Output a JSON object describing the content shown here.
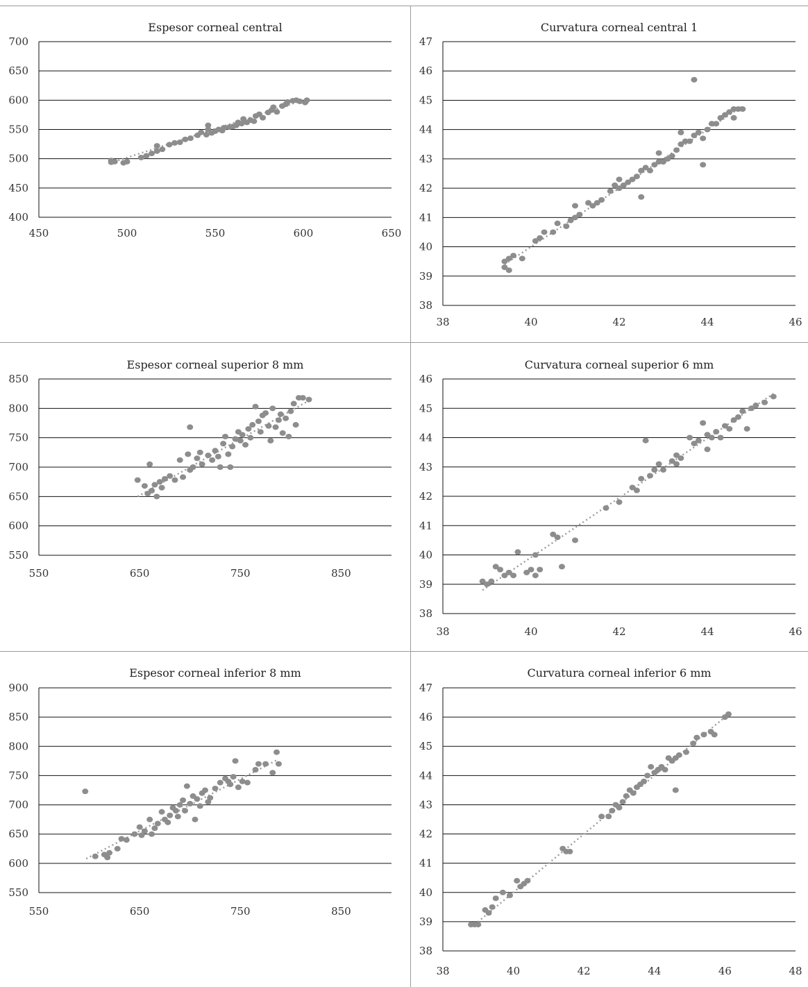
{
  "chart_data": [
    {
      "type": "scatter",
      "title": "Espesor corneal central",
      "xlim": [
        450,
        650
      ],
      "ylim": [
        400,
        700
      ],
      "xticks": [
        450,
        500,
        550,
        600,
        650
      ],
      "yticks": [
        400,
        450,
        500,
        550,
        600,
        650,
        700
      ],
      "trendline": [
        [
          495,
          497
        ],
        [
          600,
          600
        ]
      ],
      "points": [
        [
          491,
          497
        ],
        [
          491,
          494
        ],
        [
          493,
          495
        ],
        [
          498,
          493
        ],
        [
          500,
          495
        ],
        [
          508,
          502
        ],
        [
          511,
          505
        ],
        [
          514,
          509
        ],
        [
          517,
          513
        ],
        [
          517,
          522
        ],
        [
          520,
          516
        ],
        [
          524,
          524
        ],
        [
          527,
          527
        ],
        [
          530,
          528
        ],
        [
          533,
          533
        ],
        [
          536,
          535
        ],
        [
          540,
          540
        ],
        [
          542,
          545
        ],
        [
          545,
          541
        ],
        [
          546,
          550
        ],
        [
          546,
          557
        ],
        [
          548,
          544
        ],
        [
          550,
          547
        ],
        [
          552,
          550
        ],
        [
          554,
          548
        ],
        [
          555,
          553
        ],
        [
          558,
          554
        ],
        [
          560,
          555
        ],
        [
          562,
          557
        ],
        [
          563,
          562
        ],
        [
          565,
          560
        ],
        [
          566,
          568
        ],
        [
          568,
          562
        ],
        [
          570,
          566
        ],
        [
          572,
          564
        ],
        [
          573,
          573
        ],
        [
          575,
          576
        ],
        [
          577,
          570
        ],
        [
          580,
          579
        ],
        [
          582,
          583
        ],
        [
          583,
          588
        ],
        [
          585,
          580
        ],
        [
          588,
          590
        ],
        [
          590,
          593
        ],
        [
          591,
          597
        ],
        [
          594,
          599
        ],
        [
          596,
          600
        ],
        [
          598,
          598
        ],
        [
          601,
          596
        ],
        [
          602,
          600
        ]
      ]
    },
    {
      "type": "scatter",
      "title": "Curvatura corneal central 1",
      "xlim": [
        38,
        46
      ],
      "ylim": [
        38,
        47
      ],
      "xticks": [
        38,
        40,
        42,
        44,
        46
      ],
      "yticks": [
        38,
        39,
        40,
        41,
        42,
        43,
        44,
        45,
        46,
        47
      ],
      "trendline": [
        [
          39.4,
          39.4
        ],
        [
          44.8,
          44.8
        ]
      ],
      "points": [
        [
          39.4,
          39.5
        ],
        [
          39.4,
          39.3
        ],
        [
          39.5,
          39.2
        ],
        [
          39.5,
          39.6
        ],
        [
          39.6,
          39.7
        ],
        [
          39.8,
          39.6
        ],
        [
          40.1,
          40.2
        ],
        [
          40.2,
          40.3
        ],
        [
          40.3,
          40.5
        ],
        [
          40.5,
          40.5
        ],
        [
          40.6,
          40.8
        ],
        [
          40.8,
          40.7
        ],
        [
          40.9,
          40.9
        ],
        [
          41.0,
          41.0
        ],
        [
          41.0,
          41.4
        ],
        [
          41.1,
          41.1
        ],
        [
          41.3,
          41.5
        ],
        [
          41.4,
          41.4
        ],
        [
          41.5,
          41.5
        ],
        [
          41.6,
          41.6
        ],
        [
          41.8,
          41.9
        ],
        [
          41.9,
          42.1
        ],
        [
          42.0,
          42.0
        ],
        [
          42.0,
          42.3
        ],
        [
          42.1,
          42.1
        ],
        [
          42.2,
          42.2
        ],
        [
          42.3,
          42.3
        ],
        [
          42.4,
          42.4
        ],
        [
          42.5,
          42.6
        ],
        [
          42.5,
          41.7
        ],
        [
          42.6,
          42.7
        ],
        [
          42.7,
          42.6
        ],
        [
          42.8,
          42.8
        ],
        [
          42.9,
          42.9
        ],
        [
          42.9,
          43.2
        ],
        [
          43.0,
          42.9
        ],
        [
          43.1,
          43.0
        ],
        [
          43.2,
          43.1
        ],
        [
          43.3,
          43.3
        ],
        [
          43.4,
          43.5
        ],
        [
          43.4,
          43.9
        ],
        [
          43.5,
          43.6
        ],
        [
          43.6,
          43.6
        ],
        [
          43.7,
          43.8
        ],
        [
          43.7,
          45.7
        ],
        [
          43.8,
          43.9
        ],
        [
          43.9,
          43.7
        ],
        [
          43.9,
          42.8
        ],
        [
          44.0,
          44.0
        ],
        [
          44.1,
          44.2
        ],
        [
          44.2,
          44.2
        ],
        [
          44.3,
          44.4
        ],
        [
          44.4,
          44.5
        ],
        [
          44.5,
          44.6
        ],
        [
          44.6,
          44.7
        ],
        [
          44.7,
          44.7
        ],
        [
          44.8,
          44.7
        ],
        [
          44.6,
          44.4
        ]
      ]
    },
    {
      "type": "scatter",
      "title": "Espesor corneal superior 8 mm",
      "xlim": [
        550,
        900
      ],
      "ylim": [
        550,
        850
      ],
      "xticks": [
        550,
        650,
        750,
        850
      ],
      "yticks": [
        550,
        600,
        650,
        700,
        750,
        800,
        850
      ],
      "trendline": [
        [
          648,
          650
        ],
        [
          820,
          815
        ]
      ],
      "points": [
        [
          648,
          678
        ],
        [
          655,
          668
        ],
        [
          658,
          655
        ],
        [
          660,
          705
        ],
        [
          662,
          660
        ],
        [
          665,
          670
        ],
        [
          667,
          650
        ],
        [
          670,
          675
        ],
        [
          672,
          665
        ],
        [
          675,
          680
        ],
        [
          680,
          685
        ],
        [
          685,
          678
        ],
        [
          690,
          712
        ],
        [
          693,
          683
        ],
        [
          698,
          722
        ],
        [
          700,
          695
        ],
        [
          700,
          768
        ],
        [
          703,
          700
        ],
        [
          707,
          715
        ],
        [
          710,
          725
        ],
        [
          712,
          705
        ],
        [
          718,
          720
        ],
        [
          722,
          712
        ],
        [
          725,
          728
        ],
        [
          728,
          718
        ],
        [
          730,
          700
        ],
        [
          733,
          740
        ],
        [
          735,
          752
        ],
        [
          738,
          722
        ],
        [
          740,
          700
        ],
        [
          742,
          735
        ],
        [
          745,
          748
        ],
        [
          748,
          760
        ],
        [
          750,
          745
        ],
        [
          752,
          755
        ],
        [
          755,
          738
        ],
        [
          758,
          765
        ],
        [
          760,
          750
        ],
        [
          762,
          772
        ],
        [
          765,
          803
        ],
        [
          768,
          778
        ],
        [
          770,
          760
        ],
        [
          772,
          788
        ],
        [
          775,
          792
        ],
        [
          778,
          770
        ],
        [
          780,
          745
        ],
        [
          782,
          800
        ],
        [
          785,
          768
        ],
        [
          788,
          780
        ],
        [
          790,
          790
        ],
        [
          792,
          758
        ],
        [
          795,
          783
        ],
        [
          798,
          752
        ],
        [
          800,
          795
        ],
        [
          803,
          808
        ],
        [
          805,
          772
        ],
        [
          808,
          818
        ],
        [
          812,
          818
        ],
        [
          818,
          815
        ]
      ]
    },
    {
      "type": "scatter",
      "title": "Curvatura corneal superior 6 mm",
      "xlim": [
        38,
        46
      ],
      "ylim": [
        38,
        46
      ],
      "xticks": [
        38,
        40,
        42,
        44,
        46
      ],
      "yticks": [
        38,
        39,
        40,
        41,
        42,
        43,
        44,
        45,
        46
      ],
      "trendline": [
        [
          38.9,
          38.8
        ],
        [
          45.5,
          45.5
        ]
      ],
      "points": [
        [
          38.9,
          39.1
        ],
        [
          39.0,
          39.0
        ],
        [
          39.1,
          39.1
        ],
        [
          39.2,
          39.6
        ],
        [
          39.3,
          39.5
        ],
        [
          39.4,
          39.3
        ],
        [
          39.5,
          39.4
        ],
        [
          39.6,
          39.3
        ],
        [
          39.7,
          40.1
        ],
        [
          39.9,
          39.4
        ],
        [
          40.0,
          39.5
        ],
        [
          40.1,
          40.0
        ],
        [
          40.1,
          39.3
        ],
        [
          40.2,
          39.5
        ],
        [
          40.5,
          40.7
        ],
        [
          40.6,
          40.6
        ],
        [
          40.7,
          39.6
        ],
        [
          41.0,
          40.5
        ],
        [
          41.7,
          41.6
        ],
        [
          42.0,
          41.8
        ],
        [
          42.3,
          42.3
        ],
        [
          42.4,
          42.2
        ],
        [
          42.5,
          42.6
        ],
        [
          42.6,
          43.9
        ],
        [
          42.7,
          42.7
        ],
        [
          42.8,
          42.9
        ],
        [
          42.9,
          43.1
        ],
        [
          43.0,
          42.9
        ],
        [
          43.2,
          43.2
        ],
        [
          43.3,
          43.1
        ],
        [
          43.3,
          43.4
        ],
        [
          43.4,
          43.3
        ],
        [
          43.6,
          44.0
        ],
        [
          43.7,
          43.8
        ],
        [
          43.8,
          43.9
        ],
        [
          43.9,
          44.5
        ],
        [
          44.0,
          44.1
        ],
        [
          44.0,
          43.6
        ],
        [
          44.1,
          44.0
        ],
        [
          44.2,
          44.2
        ],
        [
          44.3,
          44.0
        ],
        [
          44.4,
          44.4
        ],
        [
          44.5,
          44.3
        ],
        [
          44.6,
          44.6
        ],
        [
          44.7,
          44.7
        ],
        [
          44.8,
          44.9
        ],
        [
          44.9,
          44.3
        ],
        [
          45.0,
          45.0
        ],
        [
          45.1,
          45.1
        ],
        [
          45.3,
          45.2
        ],
        [
          45.5,
          45.4
        ]
      ]
    },
    {
      "type": "scatter",
      "title": "Espesor corneal inferior 8 mm",
      "xlim": [
        550,
        900
      ],
      "ylim": [
        550,
        900
      ],
      "xticks": [
        550,
        650,
        750,
        850
      ],
      "yticks": [
        550,
        600,
        650,
        700,
        750,
        800,
        850,
        900
      ],
      "trendline": [
        [
          597,
          608
        ],
        [
          788,
          778
        ]
      ],
      "points": [
        [
          596,
          723
        ],
        [
          606,
          612
        ],
        [
          615,
          615
        ],
        [
          618,
          610
        ],
        [
          620,
          618
        ],
        [
          628,
          625
        ],
        [
          632,
          642
        ],
        [
          637,
          640
        ],
        [
          645,
          650
        ],
        [
          650,
          662
        ],
        [
          652,
          648
        ],
        [
          655,
          655
        ],
        [
          660,
          675
        ],
        [
          662,
          650
        ],
        [
          665,
          660
        ],
        [
          668,
          668
        ],
        [
          672,
          688
        ],
        [
          675,
          675
        ],
        [
          678,
          670
        ],
        [
          680,
          682
        ],
        [
          683,
          695
        ],
        [
          686,
          690
        ],
        [
          688,
          680
        ],
        [
          690,
          700
        ],
        [
          693,
          708
        ],
        [
          695,
          690
        ],
        [
          697,
          732
        ],
        [
          700,
          702
        ],
        [
          703,
          715
        ],
        [
          705,
          675
        ],
        [
          707,
          710
        ],
        [
          710,
          698
        ],
        [
          712,
          720
        ],
        [
          715,
          725
        ],
        [
          718,
          705
        ],
        [
          720,
          712
        ],
        [
          725,
          728
        ],
        [
          730,
          738
        ],
        [
          735,
          745
        ],
        [
          738,
          740
        ],
        [
          740,
          735
        ],
        [
          743,
          748
        ],
        [
          745,
          775
        ],
        [
          748,
          730
        ],
        [
          752,
          740
        ],
        [
          757,
          738
        ],
        [
          765,
          760
        ],
        [
          768,
          770
        ],
        [
          775,
          770
        ],
        [
          782,
          755
        ],
        [
          786,
          790
        ],
        [
          788,
          770
        ]
      ]
    },
    {
      "type": "scatter",
      "title": "Curvatura corneal inferior 6 mm",
      "xlim": [
        38,
        48
      ],
      "ylim": [
        38,
        47
      ],
      "xticks": [
        38,
        40,
        42,
        44,
        46,
        48
      ],
      "yticks": [
        38,
        39,
        40,
        41,
        42,
        43,
        44,
        45,
        46,
        47
      ],
      "trendline": [
        [
          38.9,
          38.9
        ],
        [
          46.1,
          46.1
        ]
      ],
      "points": [
        [
          38.8,
          38.9
        ],
        [
          38.9,
          38.9
        ],
        [
          39.0,
          38.9
        ],
        [
          39.2,
          39.4
        ],
        [
          39.3,
          39.3
        ],
        [
          39.4,
          39.5
        ],
        [
          39.5,
          39.8
        ],
        [
          39.7,
          40.0
        ],
        [
          39.9,
          39.9
        ],
        [
          40.1,
          40.4
        ],
        [
          40.2,
          40.2
        ],
        [
          40.3,
          40.3
        ],
        [
          40.4,
          40.4
        ],
        [
          41.4,
          41.5
        ],
        [
          41.5,
          41.4
        ],
        [
          41.6,
          41.4
        ],
        [
          42.5,
          42.6
        ],
        [
          42.7,
          42.6
        ],
        [
          42.8,
          42.8
        ],
        [
          42.9,
          43.0
        ],
        [
          43.0,
          42.9
        ],
        [
          43.1,
          43.1
        ],
        [
          43.2,
          43.3
        ],
        [
          43.3,
          43.5
        ],
        [
          43.4,
          43.4
        ],
        [
          43.5,
          43.6
        ],
        [
          43.6,
          43.7
        ],
        [
          43.7,
          43.8
        ],
        [
          43.8,
          44.0
        ],
        [
          43.9,
          44.3
        ],
        [
          44.0,
          44.1
        ],
        [
          44.1,
          44.2
        ],
        [
          44.2,
          44.3
        ],
        [
          44.3,
          44.2
        ],
        [
          44.4,
          44.6
        ],
        [
          44.5,
          44.5
        ],
        [
          44.6,
          43.5
        ],
        [
          44.6,
          44.6
        ],
        [
          44.7,
          44.7
        ],
        [
          44.9,
          44.8
        ],
        [
          45.1,
          45.1
        ],
        [
          45.2,
          45.3
        ],
        [
          45.4,
          45.4
        ],
        [
          45.6,
          45.5
        ],
        [
          45.7,
          45.4
        ],
        [
          46.0,
          46.0
        ],
        [
          46.1,
          46.1
        ]
      ]
    }
  ]
}
